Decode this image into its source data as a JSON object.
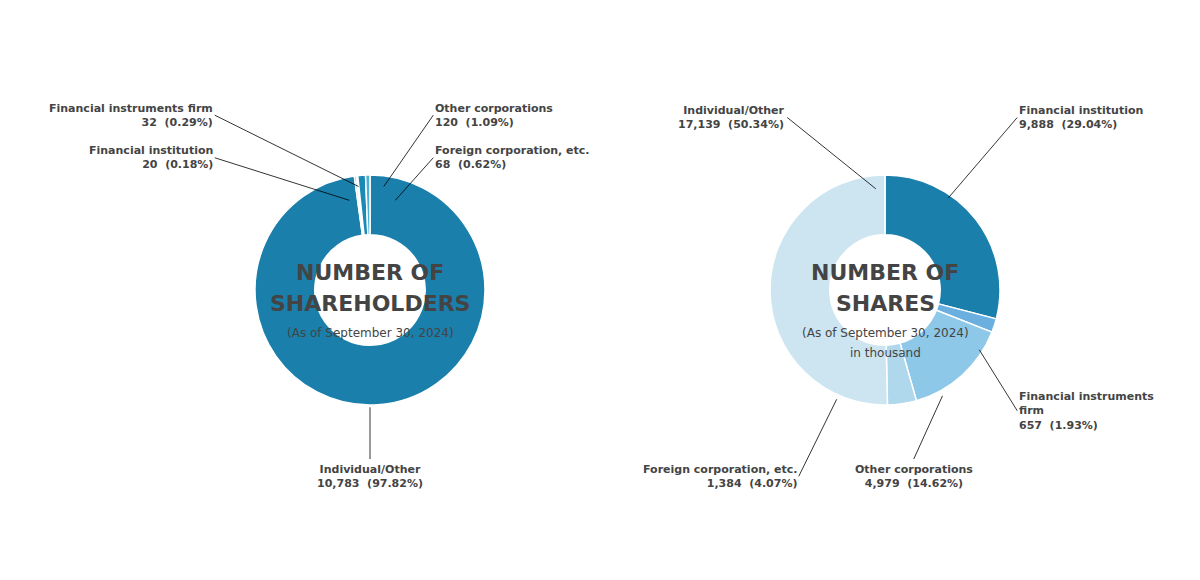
{
  "chart_data": [
    {
      "type": "pie",
      "title": "NUMBER OF\nSHAREHOLDERS",
      "subtitle": "(As of September 30, 2024)",
      "categories": [
        "Individual/Other",
        "Financial instruments firm",
        "Financial institution",
        "Other corporations",
        "Foreign corporation, etc."
      ],
      "values": [
        10783,
        32,
        20,
        120,
        68
      ],
      "value_labels": [
        "10,783  (97.82%)",
        "32  (0.29%)",
        "20  (0.18%)",
        "120  (1.09%)",
        "68  (0.62%)"
      ],
      "colors": [
        "#1a7fab",
        "#7bbdd4",
        "#a8cfe0",
        "#1a8ab5",
        "#4ab0d4"
      ],
      "data_labels": true
    },
    {
      "type": "pie",
      "title": "NUMBER OF\nSHARES",
      "subtitle": "(As of September 30, 2024)\nin thousand",
      "categories": [
        "Financial institution",
        "Financial instruments\nfirm",
        "Other corporations",
        "Foreign corporation, etc.",
        "Individual/Other"
      ],
      "values": [
        9888,
        657,
        4979,
        1384,
        17139
      ],
      "value_labels": [
        "9,888  (29.04%)",
        "657  (1.93%)",
        "4,979  (14.62%)",
        "1,384  (4.07%)",
        "17,139  (50.34%)"
      ],
      "colors": [
        "#1a7fab",
        "#6aafe0",
        "#8dc8e8",
        "#b0d8ec",
        "#cce5f0"
      ],
      "data_labels": true
    }
  ]
}
